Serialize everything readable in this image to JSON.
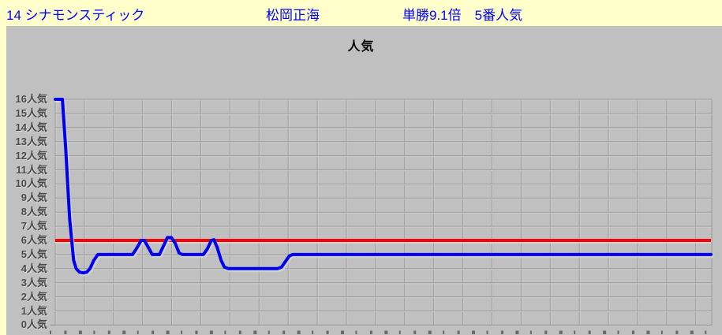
{
  "header": {
    "horse": "14 シナモンスティック",
    "jockey": "松岡正海",
    "odds_info": "単勝9.1倍　5番人気"
  },
  "chart_data": {
    "type": "line",
    "title": "人気",
    "y_axis": {
      "min": 0,
      "max": 16,
      "tick_step": 1,
      "tick_suffix": "人気",
      "max_at_top": true
    },
    "x_axis": {
      "tick_labels_visible": false
    },
    "grid": {
      "vertical_divisions": 22,
      "horizontal_divisions": 16,
      "grid_on": true
    },
    "legend": {
      "visible": false
    },
    "reference_line": {
      "value": 6,
      "color": "#FF0000"
    },
    "series": [
      {
        "name": "popularity-rank-over-time",
        "color": "#0000EE",
        "points": [
          {
            "t": 0.0,
            "v": 16
          },
          {
            "t": 0.011,
            "v": 16
          },
          {
            "t": 0.016,
            "v": 12.5
          },
          {
            "t": 0.022,
            "v": 7.5
          },
          {
            "t": 0.028,
            "v": 4.6
          },
          {
            "t": 0.032,
            "v": 4.0
          },
          {
            "t": 0.037,
            "v": 3.75
          },
          {
            "t": 0.043,
            "v": 3.7
          },
          {
            "t": 0.048,
            "v": 3.75
          },
          {
            "t": 0.053,
            "v": 4.0
          },
          {
            "t": 0.059,
            "v": 4.6
          },
          {
            "t": 0.065,
            "v": 5.0
          },
          {
            "t": 0.118,
            "v": 5.0
          },
          {
            "t": 0.125,
            "v": 5.5
          },
          {
            "t": 0.131,
            "v": 6.0
          },
          {
            "t": 0.136,
            "v": 6.0
          },
          {
            "t": 0.142,
            "v": 5.5
          },
          {
            "t": 0.148,
            "v": 5.0
          },
          {
            "t": 0.159,
            "v": 5.0
          },
          {
            "t": 0.165,
            "v": 5.6
          },
          {
            "t": 0.171,
            "v": 6.2
          },
          {
            "t": 0.177,
            "v": 6.2
          },
          {
            "t": 0.183,
            "v": 5.8
          },
          {
            "t": 0.189,
            "v": 5.1
          },
          {
            "t": 0.194,
            "v": 5.0
          },
          {
            "t": 0.226,
            "v": 5.0
          },
          {
            "t": 0.232,
            "v": 5.4
          },
          {
            "t": 0.238,
            "v": 6.0
          },
          {
            "t": 0.242,
            "v": 6.05
          },
          {
            "t": 0.247,
            "v": 5.5
          },
          {
            "t": 0.253,
            "v": 4.6
          },
          {
            "t": 0.258,
            "v": 4.1
          },
          {
            "t": 0.264,
            "v": 4.0
          },
          {
            "t": 0.339,
            "v": 4.0
          },
          {
            "t": 0.345,
            "v": 4.1
          },
          {
            "t": 0.351,
            "v": 4.5
          },
          {
            "t": 0.357,
            "v": 4.9
          },
          {
            "t": 0.362,
            "v": 5.0
          },
          {
            "t": 1.0,
            "v": 5.0
          }
        ]
      }
    ]
  },
  "colors": {
    "header_bg": "#FFFFCC",
    "header_text": "#0000FF",
    "chart_bg": "#C0C0C0",
    "gridline": "#9A9A9A",
    "gridline_highlight": "#D2D2D2",
    "axis_label": "#4A4A4A",
    "series_blue": "#0000EE",
    "reference_red": "#FF0000"
  }
}
